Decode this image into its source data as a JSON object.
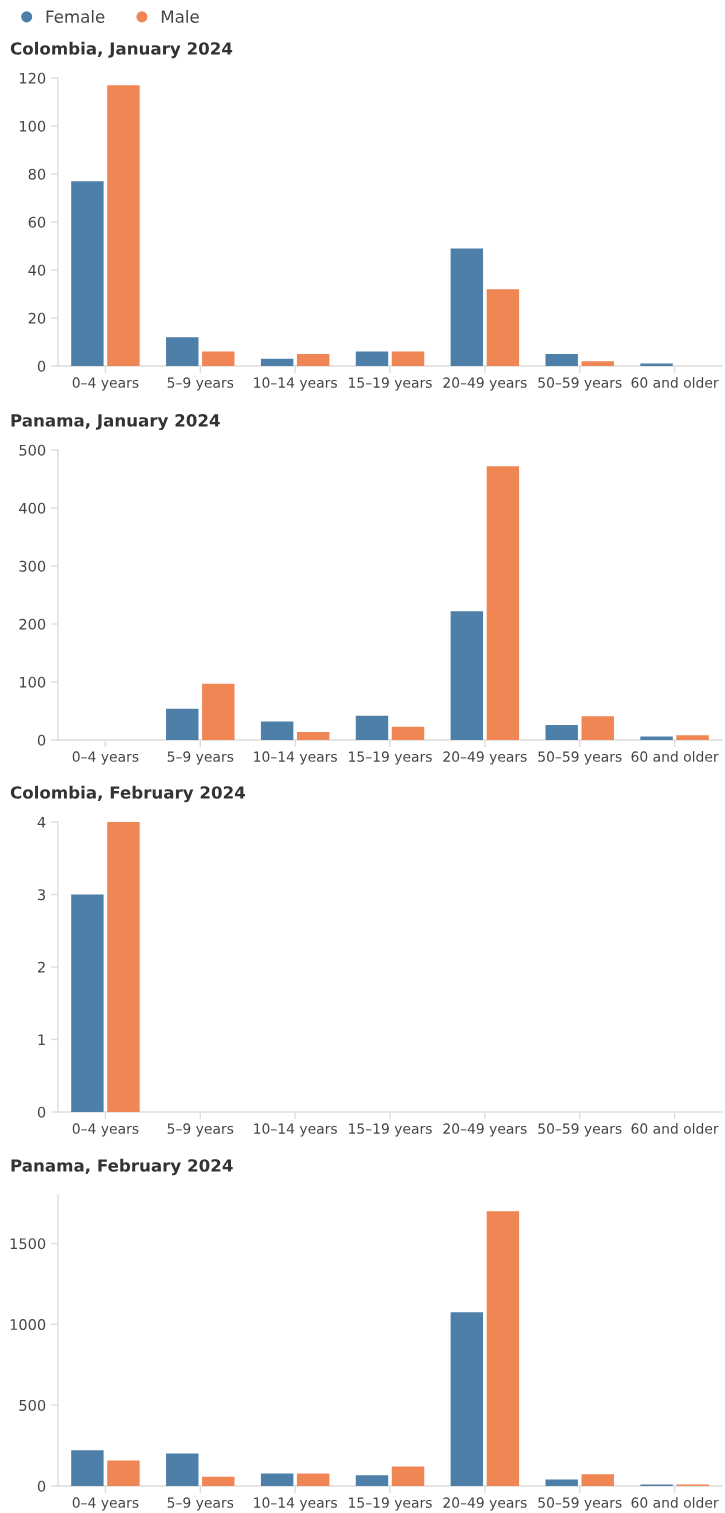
{
  "chart_data": [
    {
      "type": "bar",
      "title": "Colombia, January 2024",
      "categories": [
        "0–4 years",
        "5–9 years",
        "10–14 years",
        "15–19 years",
        "20–49 years",
        "50–59 years",
        "60 and older"
      ],
      "legend": "top left",
      "ylim": [
        0,
        120
      ],
      "yticks": [
        0,
        20,
        40,
        60,
        80,
        100,
        120
      ],
      "series": [
        {
          "name": "Female",
          "color": "#4e7fa8",
          "values": [
            77,
            12,
            3,
            6,
            49,
            5,
            1
          ]
        },
        {
          "name": "Male",
          "color": "#ef8654",
          "values": [
            117,
            6,
            5,
            6,
            32,
            2,
            0
          ]
        }
      ]
    },
    {
      "type": "bar",
      "title": "Panama, January 2024",
      "categories": [
        "0–4 years",
        "5–9 years",
        "10–14 years",
        "15–19 years",
        "20–49 years",
        "50–59 years",
        "60 and older"
      ],
      "ylim": [
        0,
        500
      ],
      "yticks": [
        0,
        100,
        200,
        300,
        400,
        500
      ],
      "series": [
        {
          "color": "#4e7fa8",
          "values": [
            0,
            54,
            32,
            42,
            222,
            26,
            6
          ]
        },
        {
          "color": "#ef8654",
          "values": [
            0,
            97,
            14,
            23,
            472,
            41,
            8
          ]
        }
      ]
    },
    {
      "type": "bar",
      "title": "Colombia, February 2024",
      "categories": [
        "0–4 years",
        "5–9 years",
        "10–14 years",
        "15–19 years",
        "20–49 years",
        "50–59 years",
        "60 and older"
      ],
      "ylim": [
        0,
        4
      ],
      "yticks": [
        0,
        1,
        2,
        3,
        4
      ],
      "series": [
        {
          "color": "#4e7fa8",
          "values": [
            3,
            0,
            0,
            0,
            0,
            0,
            0
          ]
        },
        {
          "color": "#ef8654",
          "values": [
            4,
            0,
            0,
            0,
            0,
            0,
            0
          ]
        }
      ]
    },
    {
      "type": "bar",
      "title": "Panama, February 2024",
      "categories": [
        "0–4 years",
        "5–9 years",
        "10–14 years",
        "15–19 years",
        "20–49 years",
        "50–59 years",
        "60 and older"
      ],
      "ylim": [
        0,
        1800
      ],
      "yticks": [
        {
          "value": 0,
          "label": "0"
        },
        {
          "value": 500,
          "label": "500"
        },
        {
          "value": 1000,
          "label": "1000"
        },
        {
          "value": 1500,
          "label": "1500"
        }
      ],
      "series": [
        {
          "color": "#4e7fa8",
          "values": [
            221,
            201,
            77,
            66,
            1075,
            40,
            9
          ]
        },
        {
          "color": "#ef8654",
          "values": [
            158,
            57,
            77,
            120,
            1700,
            72,
            9
          ]
        }
      ]
    }
  ]
}
